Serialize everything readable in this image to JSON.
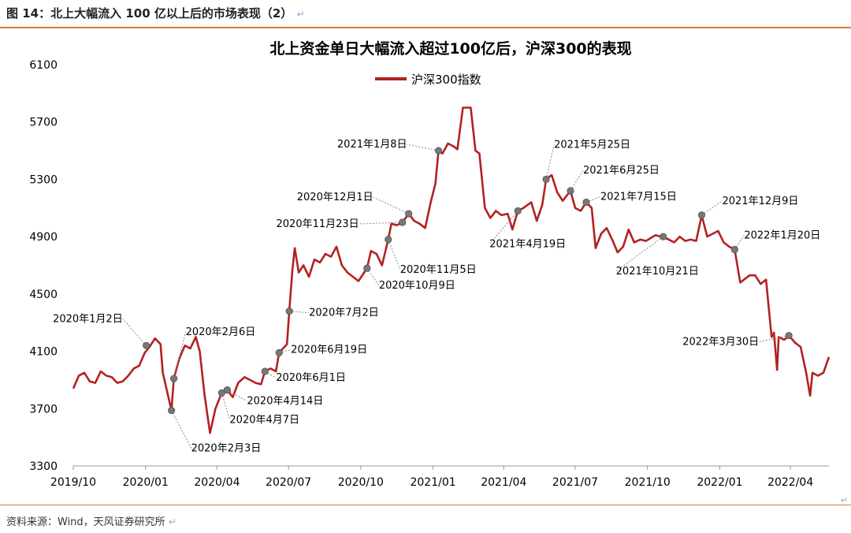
{
  "header": {
    "figure_title": "图 14：北上大幅流入 100 亿以上后的市场表现（2）",
    "return_mark": "↵"
  },
  "footer": {
    "source": "资料来源：Wind，天风证券研究所",
    "return_mark": "↵",
    "side_mark": "↵"
  },
  "chart_data": {
    "type": "line",
    "title": "北上资金单日大幅流入超过100亿后，沪深300的表现",
    "xlabel": "",
    "ylabel": "",
    "ylim": [
      3300,
      6100
    ],
    "yticks": [
      3300,
      3700,
      4100,
      4500,
      4900,
      5300,
      5700,
      6100
    ],
    "xlim": [
      "2019-10-01",
      "2022-05-20"
    ],
    "xticks": [
      {
        "date": "2019-10-01",
        "label": "2019/10"
      },
      {
        "date": "2020-01-01",
        "label": "2020/01"
      },
      {
        "date": "2020-04-01",
        "label": "2020/04"
      },
      {
        "date": "2020-07-01",
        "label": "2020/07"
      },
      {
        "date": "2020-10-01",
        "label": "2020/10"
      },
      {
        "date": "2021-01-01",
        "label": "2021/01"
      },
      {
        "date": "2021-04-01",
        "label": "2021/04"
      },
      {
        "date": "2021-07-01",
        "label": "2021/07"
      },
      {
        "date": "2021-10-01",
        "label": "2021/10"
      },
      {
        "date": "2022-01-01",
        "label": "2022/01"
      },
      {
        "date": "2022-04-01",
        "label": "2022/04"
      }
    ],
    "grid": false,
    "legend": "top-center",
    "series": [
      {
        "name": "沪深300指数",
        "color": "#b22222",
        "points": [
          [
            "2019-10-01",
            3840
          ],
          [
            "2019-10-08",
            3930
          ],
          [
            "2019-10-15",
            3950
          ],
          [
            "2019-10-22",
            3890
          ],
          [
            "2019-10-29",
            3880
          ],
          [
            "2019-11-05",
            3960
          ],
          [
            "2019-11-12",
            3930
          ],
          [
            "2019-11-19",
            3920
          ],
          [
            "2019-11-26",
            3880
          ],
          [
            "2019-12-03",
            3890
          ],
          [
            "2019-12-10",
            3930
          ],
          [
            "2019-12-17",
            3980
          ],
          [
            "2019-12-24",
            4000
          ],
          [
            "2019-12-31",
            4090
          ],
          [
            "2020-01-06",
            4130
          ],
          [
            "2020-01-13",
            4190
          ],
          [
            "2020-01-20",
            4150
          ],
          [
            "2020-01-23",
            3950
          ],
          [
            "2020-02-03",
            3688
          ],
          [
            "2020-02-06",
            3910
          ],
          [
            "2020-02-13",
            4050
          ],
          [
            "2020-02-20",
            4140
          ],
          [
            "2020-02-27",
            4120
          ],
          [
            "2020-03-05",
            4200
          ],
          [
            "2020-03-10",
            4100
          ],
          [
            "2020-03-16",
            3800
          ],
          [
            "2020-03-23",
            3530
          ],
          [
            "2020-03-30",
            3700
          ],
          [
            "2020-04-07",
            3810
          ],
          [
            "2020-04-14",
            3830
          ],
          [
            "2020-04-21",
            3780
          ],
          [
            "2020-04-28",
            3880
          ],
          [
            "2020-05-06",
            3920
          ],
          [
            "2020-05-13",
            3900
          ],
          [
            "2020-05-20",
            3880
          ],
          [
            "2020-05-27",
            3870
          ],
          [
            "2020-06-01",
            3960
          ],
          [
            "2020-06-08",
            3980
          ],
          [
            "2020-06-15",
            3960
          ],
          [
            "2020-06-19",
            4090
          ],
          [
            "2020-06-29",
            4150
          ],
          [
            "2020-07-02",
            4380
          ],
          [
            "2020-07-06",
            4670
          ],
          [
            "2020-07-09",
            4820
          ],
          [
            "2020-07-14",
            4650
          ],
          [
            "2020-07-20",
            4700
          ],
          [
            "2020-07-27",
            4620
          ],
          [
            "2020-08-03",
            4740
          ],
          [
            "2020-08-10",
            4720
          ],
          [
            "2020-08-17",
            4780
          ],
          [
            "2020-08-24",
            4760
          ],
          [
            "2020-08-31",
            4830
          ],
          [
            "2020-09-07",
            4700
          ],
          [
            "2020-09-14",
            4650
          ],
          [
            "2020-09-21",
            4620
          ],
          [
            "2020-09-28",
            4590
          ],
          [
            "2020-10-09",
            4680
          ],
          [
            "2020-10-14",
            4800
          ],
          [
            "2020-10-21",
            4780
          ],
          [
            "2020-10-28",
            4700
          ],
          [
            "2020-11-05",
            4880
          ],
          [
            "2020-11-09",
            4990
          ],
          [
            "2020-11-16",
            4980
          ],
          [
            "2020-11-23",
            5000
          ],
          [
            "2020-12-01",
            5060
          ],
          [
            "2020-12-08",
            5010
          ],
          [
            "2020-12-15",
            4990
          ],
          [
            "2020-12-22",
            4960
          ],
          [
            "2020-12-29",
            5140
          ],
          [
            "2021-01-04",
            5270
          ],
          [
            "2021-01-08",
            5500
          ],
          [
            "2021-01-13",
            5480
          ],
          [
            "2021-01-20",
            5550
          ],
          [
            "2021-01-27",
            5530
          ],
          [
            "2021-02-01",
            5510
          ],
          [
            "2021-02-08",
            5800
          ],
          [
            "2021-02-18",
            5800
          ],
          [
            "2021-02-24",
            5500
          ],
          [
            "2021-03-01",
            5480
          ],
          [
            "2021-03-08",
            5100
          ],
          [
            "2021-03-15",
            5030
          ],
          [
            "2021-03-22",
            5080
          ],
          [
            "2021-03-29",
            5050
          ],
          [
            "2021-04-06",
            5060
          ],
          [
            "2021-04-12",
            4950
          ],
          [
            "2021-04-19",
            5080
          ],
          [
            "2021-04-26",
            5100
          ],
          [
            "2021-05-06",
            5140
          ],
          [
            "2021-05-13",
            5010
          ],
          [
            "2021-05-20",
            5120
          ],
          [
            "2021-05-25",
            5300
          ],
          [
            "2021-06-01",
            5330
          ],
          [
            "2021-06-08",
            5210
          ],
          [
            "2021-06-15",
            5150
          ],
          [
            "2021-06-25",
            5220
          ],
          [
            "2021-07-01",
            5100
          ],
          [
            "2021-07-08",
            5080
          ],
          [
            "2021-07-15",
            5140
          ],
          [
            "2021-07-22",
            5100
          ],
          [
            "2021-07-27",
            4820
          ],
          [
            "2021-08-03",
            4920
          ],
          [
            "2021-08-10",
            4960
          ],
          [
            "2021-08-17",
            4880
          ],
          [
            "2021-08-24",
            4790
          ],
          [
            "2021-08-31",
            4830
          ],
          [
            "2021-09-07",
            4950
          ],
          [
            "2021-09-14",
            4860
          ],
          [
            "2021-09-22",
            4880
          ],
          [
            "2021-09-29",
            4870
          ],
          [
            "2021-10-11",
            4910
          ],
          [
            "2021-10-18",
            4900
          ],
          [
            "2021-10-21",
            4900
          ],
          [
            "2021-10-28",
            4880
          ],
          [
            "2021-11-04",
            4860
          ],
          [
            "2021-11-11",
            4900
          ],
          [
            "2021-11-18",
            4870
          ],
          [
            "2021-11-25",
            4880
          ],
          [
            "2021-12-02",
            4870
          ],
          [
            "2021-12-09",
            5050
          ],
          [
            "2021-12-16",
            4900
          ],
          [
            "2021-12-23",
            4920
          ],
          [
            "2021-12-30",
            4940
          ],
          [
            "2022-01-06",
            4860
          ],
          [
            "2022-01-13",
            4830
          ],
          [
            "2022-01-20",
            4810
          ],
          [
            "2022-01-27",
            4580
          ],
          [
            "2022-02-08",
            4630
          ],
          [
            "2022-02-15",
            4630
          ],
          [
            "2022-02-22",
            4570
          ],
          [
            "2022-03-01",
            4600
          ],
          [
            "2022-03-08",
            4200
          ],
          [
            "2022-03-11",
            4230
          ],
          [
            "2022-03-15",
            3970
          ],
          [
            "2022-03-17",
            4200
          ],
          [
            "2022-03-24",
            4180
          ],
          [
            "2022-03-30",
            4210
          ],
          [
            "2022-04-07",
            4160
          ],
          [
            "2022-04-14",
            4130
          ],
          [
            "2022-04-21",
            3950
          ],
          [
            "2022-04-26",
            3790
          ],
          [
            "2022-04-29",
            3950
          ],
          [
            "2022-05-06",
            3930
          ],
          [
            "2022-05-13",
            3950
          ],
          [
            "2022-05-20",
            4060
          ]
        ]
      }
    ],
    "annotations": [
      {
        "date": "2020-01-02",
        "value": 4140,
        "label": "2020年1月2日"
      },
      {
        "date": "2020-02-03",
        "value": 3688,
        "label": "2020年2月3日"
      },
      {
        "date": "2020-02-06",
        "value": 3910,
        "label": "2020年2月6日"
      },
      {
        "date": "2020-04-07",
        "value": 3810,
        "label": "2020年4月7日"
      },
      {
        "date": "2020-04-14",
        "value": 3830,
        "label": "2020年4月14日"
      },
      {
        "date": "2020-06-01",
        "value": 3960,
        "label": "2020年6月1日"
      },
      {
        "date": "2020-06-19",
        "value": 4090,
        "label": "2020年6月19日"
      },
      {
        "date": "2020-07-02",
        "value": 4380,
        "label": "2020年7月2日"
      },
      {
        "date": "2020-10-09",
        "value": 4680,
        "label": "2020年10月9日"
      },
      {
        "date": "2020-11-05",
        "value": 4880,
        "label": "2020年11月5日"
      },
      {
        "date": "2020-11-23",
        "value": 5000,
        "label": "2020年11月23日"
      },
      {
        "date": "2020-12-01",
        "value": 5060,
        "label": "2020年12月1日"
      },
      {
        "date": "2021-01-08",
        "value": 5500,
        "label": "2021年1月8日"
      },
      {
        "date": "2021-04-19",
        "value": 5080,
        "label": "2021年4月19日"
      },
      {
        "date": "2021-05-25",
        "value": 5300,
        "label": "2021年5月25日"
      },
      {
        "date": "2021-06-25",
        "value": 5220,
        "label": "2021年6月25日"
      },
      {
        "date": "2021-07-15",
        "value": 5140,
        "label": "2021年7月15日"
      },
      {
        "date": "2021-10-21",
        "value": 4900,
        "label": "2021年10月21日"
      },
      {
        "date": "2021-12-09",
        "value": 5050,
        "label": "2021年12月9日"
      },
      {
        "date": "2022-01-20",
        "value": 4810,
        "label": "2022年1月20日"
      },
      {
        "date": "2022-03-30",
        "value": 4210,
        "label": "2022年3月30日"
      }
    ]
  }
}
